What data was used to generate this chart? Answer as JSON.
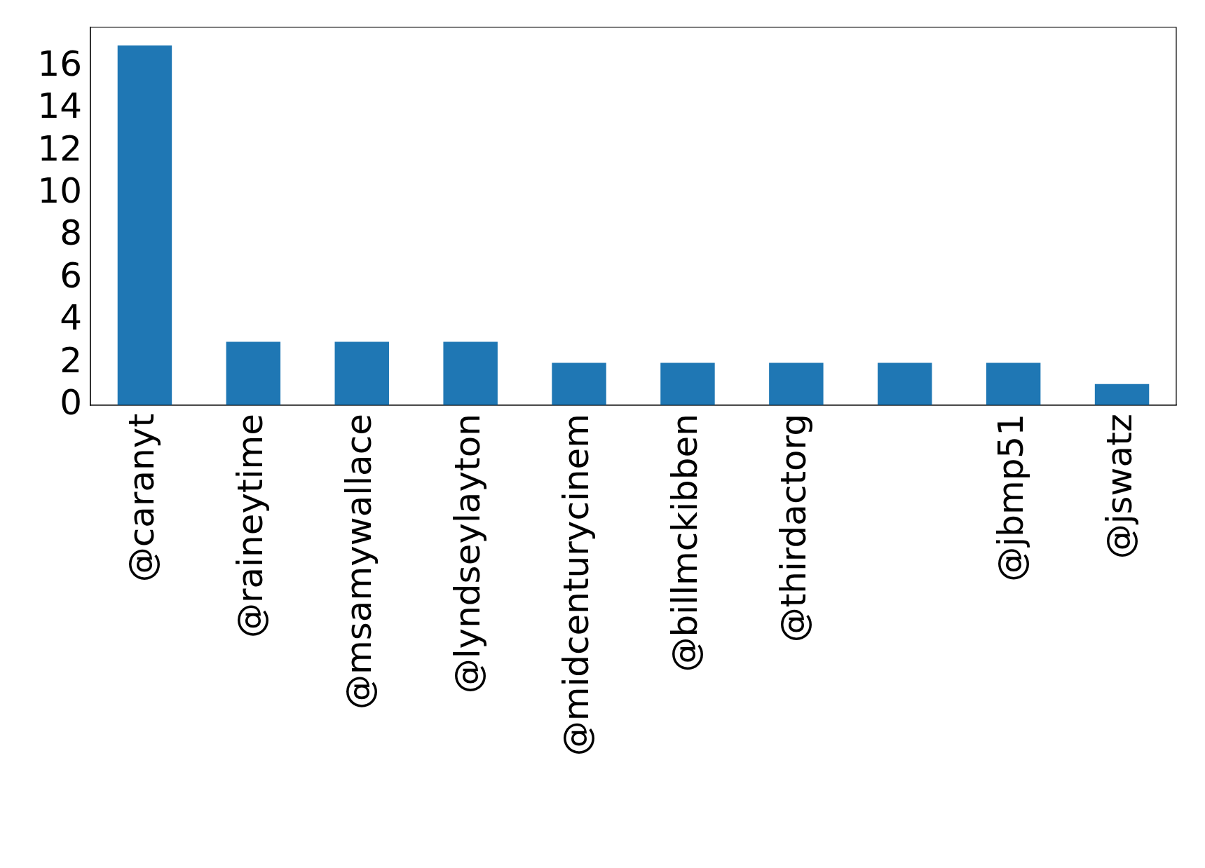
{
  "chart_data": {
    "type": "bar",
    "categories": [
      "@caranyt",
      "@raineytime",
      "@msamywallace",
      "@lyndseylayton",
      "@midcenturycinem",
      "@billmckibben",
      "@thirdactorg",
      null,
      "@jbmp51",
      "@jswatz"
    ],
    "values": [
      17,
      3,
      3,
      3,
      2,
      2,
      2,
      2,
      2,
      1
    ],
    "color": "#1f77b4",
    "ylim": [
      0,
      17.85
    ],
    "yticks": [
      0,
      2,
      4,
      6,
      8,
      10,
      12,
      14,
      16
    ],
    "grid": false,
    "legend": false
  }
}
